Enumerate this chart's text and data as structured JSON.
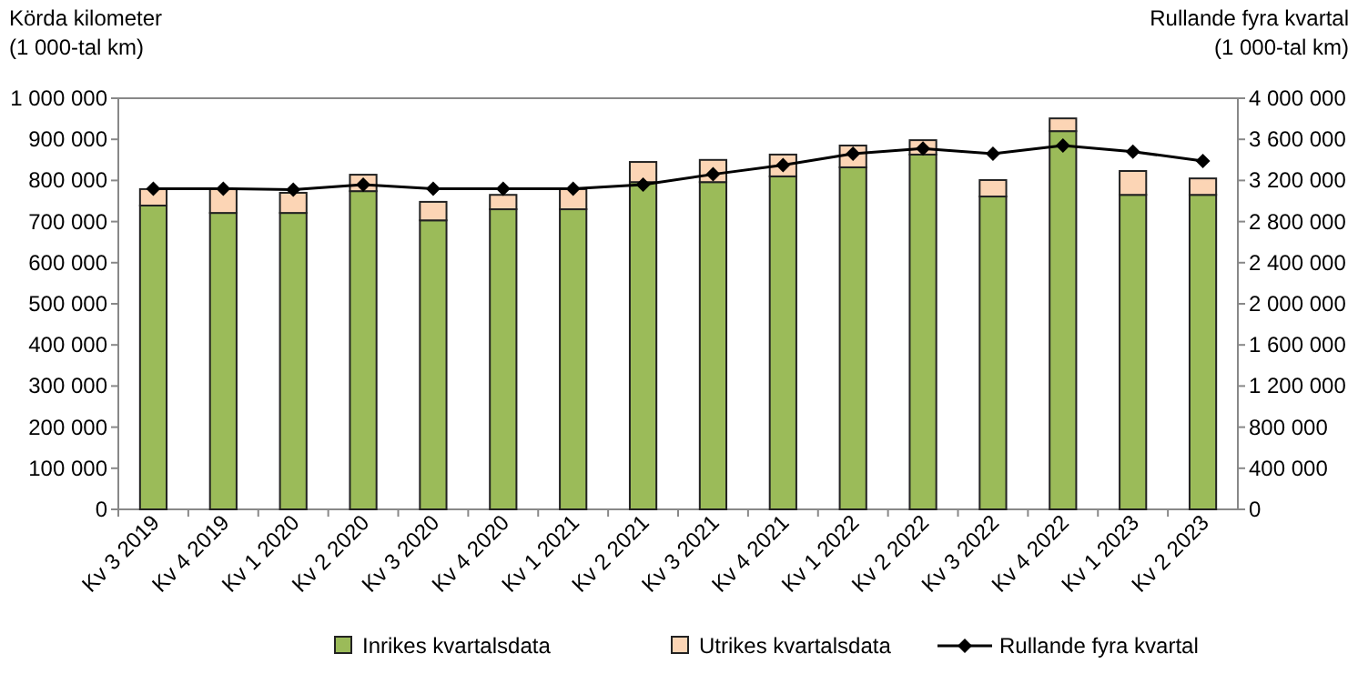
{
  "chart_data": {
    "type": "bar",
    "stacked": true,
    "ylabel": "Körda kilometer\n(1 000-tal km)",
    "y2label": "Rullande fyra kvartal\n(1 000-tal km)",
    "categories": [
      "Kv 3 2019",
      "Kv 4 2019",
      "Kv 1 2020",
      "Kv 2 2020",
      "Kv 3 2020",
      "Kv 4 2020",
      "Kv 1 2021",
      "Kv 2 2021",
      "Kv 3 2021",
      "Kv 4 2021",
      "Kv 1 2022",
      "Kv 2 2022",
      "Kv 3 2022",
      "Kv 4 2022",
      "Kv 1 2023",
      "Kv 2 2023"
    ],
    "series": [
      {
        "name": "Inrikes kvartalsdata",
        "color": "#9bbb59",
        "values": [
          739000,
          721000,
          721000,
          774000,
          703000,
          730000,
          730000,
          796000,
          796000,
          810000,
          832000,
          863000,
          761000,
          920000,
          765000,
          765000
        ]
      },
      {
        "name": "Utrikes kvartalsdata",
        "color": "#fcd5b5",
        "values": [
          40000,
          58000,
          49000,
          40000,
          45000,
          35000,
          49000,
          49000,
          54000,
          53000,
          53000,
          35000,
          40000,
          31000,
          58000,
          40000
        ]
      },
      {
        "name": "Rullande fyra kvartal",
        "type": "line",
        "axis": "y2",
        "color": "#000000",
        "marker": "diamond",
        "values": [
          3120000,
          3120000,
          3110000,
          3160000,
          3120000,
          3120000,
          3120000,
          3160000,
          3260000,
          3350000,
          3460000,
          3510000,
          3460000,
          3540000,
          3480000,
          3390000
        ]
      }
    ],
    "ylim": [
      0,
      1000000
    ],
    "yticks": [
      {
        "value": 0,
        "label": "0"
      },
      {
        "value": 100000,
        "label": "100 000"
      },
      {
        "value": 200000,
        "label": "200 000"
      },
      {
        "value": 300000,
        "label": "300 000"
      },
      {
        "value": 400000,
        "label": "400 000"
      },
      {
        "value": 500000,
        "label": "500 000"
      },
      {
        "value": 600000,
        "label": "600 000"
      },
      {
        "value": 700000,
        "label": "700 000"
      },
      {
        "value": 800000,
        "label": "800 000"
      },
      {
        "value": 900000,
        "label": "900 000"
      },
      {
        "value": 1000000,
        "label": "1 000 000"
      }
    ],
    "y2lim": [
      0,
      4000000
    ],
    "y2ticks": [
      {
        "value": 0,
        "label": "0"
      },
      {
        "value": 400000,
        "label": "400 000"
      },
      {
        "value": 800000,
        "label": "800 000"
      },
      {
        "value": 1200000,
        "label": "1 200 000"
      },
      {
        "value": 1600000,
        "label": "1 600 000"
      },
      {
        "value": 2000000,
        "label": "2 000 000"
      },
      {
        "value": 2400000,
        "label": "2 400 000"
      },
      {
        "value": 2800000,
        "label": "2 800 000"
      },
      {
        "value": 3200000,
        "label": "3 200 000"
      },
      {
        "value": 3600000,
        "label": "3 600 000"
      },
      {
        "value": 4000000,
        "label": "4 000 000"
      }
    ],
    "legend": "bottom"
  }
}
